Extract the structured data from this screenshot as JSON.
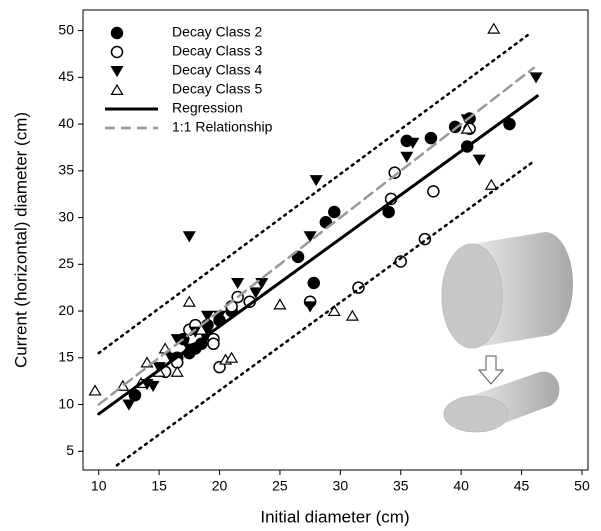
{
  "chart_data": {
    "type": "scatter",
    "x_label": "Initial diameter (cm)",
    "y_label": "Current (horizontal) diameter (cm)",
    "xlim": [
      8.7,
      50.5
    ],
    "ylim": [
      3,
      52.2
    ],
    "xticks": [
      10,
      15,
      20,
      25,
      30,
      35,
      40,
      45,
      50
    ],
    "yticks": [
      5,
      10,
      15,
      20,
      25,
      30,
      35,
      40,
      45,
      50
    ],
    "legend": "upper left",
    "series": [
      {
        "name": "Decay Class 2",
        "marker": "circle-filled",
        "color": "#000000",
        "x": [
          17.5,
          18,
          17,
          19,
          20,
          21,
          19,
          16.5,
          26.5,
          27.8,
          28.8,
          29.5,
          34,
          35.5,
          37.5,
          39.5,
          40.5,
          40.7,
          44,
          13,
          18.5
        ],
        "values": [
          15.5,
          16,
          17,
          18.5,
          19,
          20,
          17.5,
          15,
          25.8,
          23,
          29.5,
          30.6,
          30.6,
          38.2,
          38.5,
          39.7,
          37.6,
          40.6,
          40,
          11,
          16.5
        ]
      },
      {
        "name": "Decay Class 3",
        "marker": "circle-open",
        "color": "#000000",
        "x": [
          17.5,
          18,
          19.5,
          19.5,
          20,
          21,
          21.5,
          22.5,
          27.5,
          31.5,
          35,
          37,
          37.7,
          34.2,
          34.5,
          40.7,
          16.5,
          15.5
        ],
        "values": [
          18,
          18.5,
          17,
          16.5,
          14,
          20.5,
          21.5,
          21,
          21,
          22.5,
          25.3,
          27.7,
          32.8,
          32,
          34.8,
          39.5,
          14.5,
          13.5
        ]
      },
      {
        "name": "Decay Class 4",
        "marker": "triangle-down",
        "color": "#000000",
        "x": [
          12.5,
          14,
          14.5,
          15,
          16,
          16.5,
          17.5,
          17.5,
          19,
          20,
          21.5,
          23,
          23.5,
          27.5,
          27.5,
          28,
          35.5,
          36,
          40.5,
          41.5,
          46.2,
          18
        ],
        "values": [
          10,
          12.2,
          12,
          14,
          15,
          17,
          28,
          16,
          19.5,
          19.5,
          23,
          22,
          23,
          28,
          20.5,
          34,
          36.5,
          38,
          40.5,
          36.2,
          45,
          17.8
        ]
      },
      {
        "name": "Decay Class 5",
        "marker": "triangle-up",
        "color": "#000000",
        "x": [
          9.7,
          12,
          14,
          15,
          15.5,
          16.5,
          17.5,
          18.5,
          20.5,
          21,
          25,
          29.5,
          31,
          40.5,
          42.5,
          42.7,
          13.5
        ],
        "values": [
          11.5,
          12,
          14.5,
          13.5,
          16,
          13.5,
          21,
          18,
          14.8,
          15,
          20.7,
          20,
          19.5,
          39.5,
          33.5,
          50.2,
          12.3
        ]
      },
      {
        "name": "Regression",
        "marker": "line",
        "dash": "solid",
        "color": "#000000",
        "x": [
          10,
          46.3
        ],
        "values": [
          9,
          43
        ]
      },
      {
        "name": "1:1 Relationship",
        "marker": "line",
        "dash": "dashed",
        "color": "#999999",
        "x": [
          10,
          46
        ],
        "values": [
          10,
          46
        ]
      },
      {
        "marker": "line",
        "dash": "dotted",
        "color": "#000000",
        "x": [
          10,
          45.5
        ],
        "values": [
          15.5,
          49.5
        ]
      },
      {
        "marker": "line",
        "dash": "dotted",
        "color": "#000000",
        "x": [
          11.5,
          46
        ],
        "values": [
          3.5,
          36
        ]
      }
    ]
  }
}
